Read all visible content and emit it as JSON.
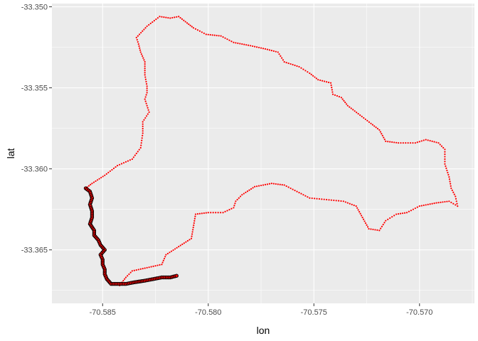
{
  "chart_data": {
    "type": "scatter",
    "xlabel": "lon",
    "ylabel": "lat",
    "xlim": [
      -70.5874,
      -70.5674
    ],
    "ylim": [
      -33.3683,
      -33.3498
    ],
    "x_ticks": [
      -70.585,
      -70.58,
      -70.575,
      -70.57
    ],
    "x_tick_labels": [
      "-70.585",
      "-70.580",
      "-70.575",
      "-70.570"
    ],
    "y_ticks": [
      -33.35,
      -33.355,
      -33.36,
      -33.365
    ],
    "y_tick_labels": [
      "-33.350",
      "-33.355",
      "-33.360",
      "-33.365"
    ],
    "grid": true,
    "panel_background": "#ebebeb",
    "grid_color": "#ffffff",
    "series": [
      {
        "marker": "small-dot",
        "color": "#ff0000",
        "points": [
          [
            -70.5842,
            -33.3672
          ],
          [
            -70.5839,
            -33.3667
          ],
          [
            -70.5836,
            -33.3663
          ],
          [
            -70.5829,
            -33.3661
          ],
          [
            -70.5822,
            -33.3659
          ],
          [
            -70.582,
            -33.3653
          ],
          [
            -70.5814,
            -33.3648
          ],
          [
            -70.5808,
            -33.3643
          ],
          [
            -70.5806,
            -33.3628
          ],
          [
            -70.58,
            -33.3627
          ],
          [
            -70.5793,
            -33.3627
          ],
          [
            -70.5788,
            -33.3624
          ],
          [
            -70.5787,
            -33.362
          ],
          [
            -70.5784,
            -33.3616
          ],
          [
            -70.5778,
            -33.3611
          ],
          [
            -70.577,
            -33.3609
          ],
          [
            -70.5764,
            -33.361
          ],
          [
            -70.5758,
            -33.3614
          ],
          [
            -70.5752,
            -33.3618
          ],
          [
            -70.5744,
            -33.3619
          ],
          [
            -70.5736,
            -33.362
          ],
          [
            -70.573,
            -33.3623
          ],
          [
            -70.5727,
            -33.363
          ],
          [
            -70.5724,
            -33.3637
          ],
          [
            -70.5719,
            -33.3638
          ],
          [
            -70.5716,
            -33.3632
          ],
          [
            -70.5711,
            -33.3628
          ],
          [
            -70.5706,
            -33.3627
          ],
          [
            -70.57,
            -33.3623
          ],
          [
            -70.5692,
            -33.3621
          ],
          [
            -70.5686,
            -33.362
          ],
          [
            -70.5682,
            -33.3623
          ],
          [
            -70.5683,
            -33.3617
          ],
          [
            -70.5685,
            -33.3612
          ],
          [
            -70.5686,
            -33.3605
          ],
          [
            -70.5688,
            -33.3597
          ],
          [
            -70.5688,
            -33.3588
          ],
          [
            -70.5691,
            -33.3584
          ],
          [
            -70.5697,
            -33.3582
          ],
          [
            -70.5702,
            -33.3584
          ],
          [
            -70.571,
            -33.3584
          ],
          [
            -70.5716,
            -33.3583
          ],
          [
            -70.5719,
            -33.3576
          ],
          [
            -70.5723,
            -33.3572
          ],
          [
            -70.5729,
            -33.3566
          ],
          [
            -70.5734,
            -33.3561
          ],
          [
            -70.5737,
            -33.3556
          ],
          [
            -70.5741,
            -33.3554
          ],
          [
            -70.5742,
            -33.3547
          ],
          [
            -70.5748,
            -33.3545
          ],
          [
            -70.5752,
            -33.3541
          ],
          [
            -70.5757,
            -33.3537
          ],
          [
            -70.5764,
            -33.3534
          ],
          [
            -70.5767,
            -33.3528
          ],
          [
            -70.5773,
            -33.3526
          ],
          [
            -70.578,
            -33.3524
          ],
          [
            -70.5788,
            -33.3522
          ],
          [
            -70.5794,
            -33.3518
          ],
          [
            -70.5801,
            -33.3517
          ],
          [
            -70.5807,
            -33.3513
          ],
          [
            -70.581,
            -33.351
          ],
          [
            -70.5814,
            -33.3506
          ],
          [
            -70.5818,
            -33.3507
          ],
          [
            -70.5823,
            -33.3506
          ],
          [
            -70.5829,
            -33.3512
          ],
          [
            -70.5834,
            -33.3519
          ],
          [
            -70.5833,
            -33.3523
          ],
          [
            -70.5832,
            -33.3528
          ],
          [
            -70.583,
            -33.3534
          ],
          [
            -70.583,
            -33.3542
          ],
          [
            -70.5829,
            -33.3549
          ],
          [
            -70.5829,
            -33.3553
          ],
          [
            -70.583,
            -33.3557
          ],
          [
            -70.5828,
            -33.3565
          ],
          [
            -70.5831,
            -33.3571
          ],
          [
            -70.5831,
            -33.3578
          ],
          [
            -70.5832,
            -33.3587
          ],
          [
            -70.5836,
            -33.3594
          ],
          [
            -70.5843,
            -33.3598
          ],
          [
            -70.5849,
            -33.3604
          ],
          [
            -70.5855,
            -33.3609
          ],
          [
            -70.5858,
            -33.3612
          ]
        ]
      },
      {
        "marker": "filled-circle",
        "color": "#ff0000",
        "outline": "#000000",
        "points": [
          [
            -70.5858,
            -33.3612
          ],
          [
            -70.5856,
            -33.3614
          ],
          [
            -70.5855,
            -33.3618
          ],
          [
            -70.5856,
            -33.3622
          ],
          [
            -70.5855,
            -33.3626
          ],
          [
            -70.5855,
            -33.363
          ],
          [
            -70.5856,
            -33.3634
          ],
          [
            -70.5854,
            -33.3638
          ],
          [
            -70.5854,
            -33.3641
          ],
          [
            -70.5852,
            -33.3644
          ],
          [
            -70.5851,
            -33.3647
          ],
          [
            -70.5849,
            -33.365
          ],
          [
            -70.5851,
            -33.3653
          ],
          [
            -70.585,
            -33.3656
          ],
          [
            -70.585,
            -33.3659
          ],
          [
            -70.5849,
            -33.3662
          ],
          [
            -70.5849,
            -33.3665
          ],
          [
            -70.5848,
            -33.3668
          ],
          [
            -70.5846,
            -33.3671
          ],
          [
            -70.5843,
            -33.3671
          ],
          [
            -70.5839,
            -33.3671
          ],
          [
            -70.5835,
            -33.367
          ],
          [
            -70.583,
            -33.3669
          ],
          [
            -70.5826,
            -33.3668
          ],
          [
            -70.5822,
            -33.3667
          ],
          [
            -70.5818,
            -33.3667
          ],
          [
            -70.5815,
            -33.3666
          ]
        ]
      }
    ]
  }
}
